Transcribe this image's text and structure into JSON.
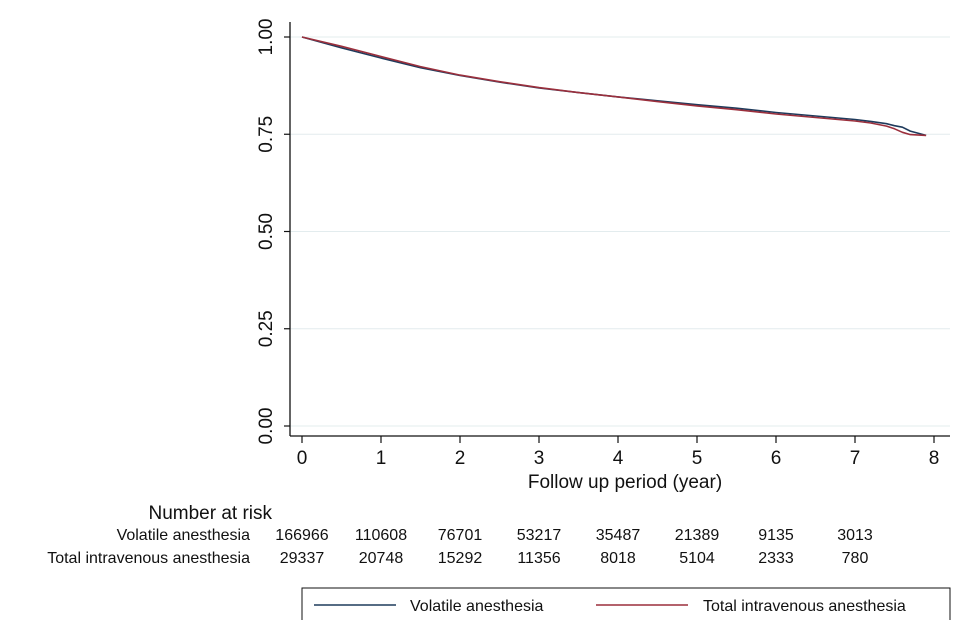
{
  "chart_data": {
    "type": "line",
    "title": "",
    "xlabel": "Follow up period (year)",
    "ylabel": "",
    "xlim": [
      0,
      8
    ],
    "ylim": [
      0,
      1
    ],
    "x_ticks": [
      "0",
      "1",
      "2",
      "3",
      "4",
      "5",
      "6",
      "7",
      "8"
    ],
    "y_ticks": [
      "0.00",
      "0.25",
      "0.50",
      "0.75",
      "1.00"
    ],
    "grid": true,
    "legend_position": "bottom",
    "series": [
      {
        "name": "Volatile anesthesia",
        "color": "#1f3b5c",
        "x": [
          0,
          0.5,
          1,
          1.5,
          2,
          2.5,
          3,
          3.5,
          4,
          4.5,
          5,
          5.5,
          6,
          6.5,
          7,
          7.2,
          7.4,
          7.5,
          7.6,
          7.7,
          7.9
        ],
        "y": [
          1.0,
          0.972,
          0.946,
          0.921,
          0.901,
          0.884,
          0.869,
          0.857,
          0.846,
          0.836,
          0.826,
          0.817,
          0.806,
          0.797,
          0.788,
          0.783,
          0.777,
          0.772,
          0.768,
          0.758,
          0.747
        ]
      },
      {
        "name": "Total intravenous anesthesia",
        "color": "#9b2f3c",
        "x": [
          0,
          0.5,
          1,
          1.5,
          2,
          2.5,
          3,
          3.5,
          4,
          4.5,
          5,
          5.5,
          6,
          6.5,
          7,
          7.2,
          7.4,
          7.5,
          7.6,
          7.7,
          7.9
        ],
        "y": [
          1.0,
          0.976,
          0.95,
          0.924,
          0.902,
          0.885,
          0.87,
          0.857,
          0.846,
          0.834,
          0.823,
          0.813,
          0.802,
          0.793,
          0.784,
          0.779,
          0.771,
          0.764,
          0.755,
          0.749,
          0.747
        ]
      }
    ],
    "risk_table": {
      "title": "Number at risk",
      "rows": [
        {
          "label": "Volatile anesthesia",
          "values": [
            "166966",
            "110608",
            "76701",
            "53217",
            "35487",
            "21389",
            "9135",
            "3013"
          ]
        },
        {
          "label": "Total intravenous anesthesia",
          "values": [
            "29337",
            "20748",
            "15292",
            "11356",
            "8018",
            "5104",
            "2333",
            "780"
          ]
        }
      ]
    }
  }
}
